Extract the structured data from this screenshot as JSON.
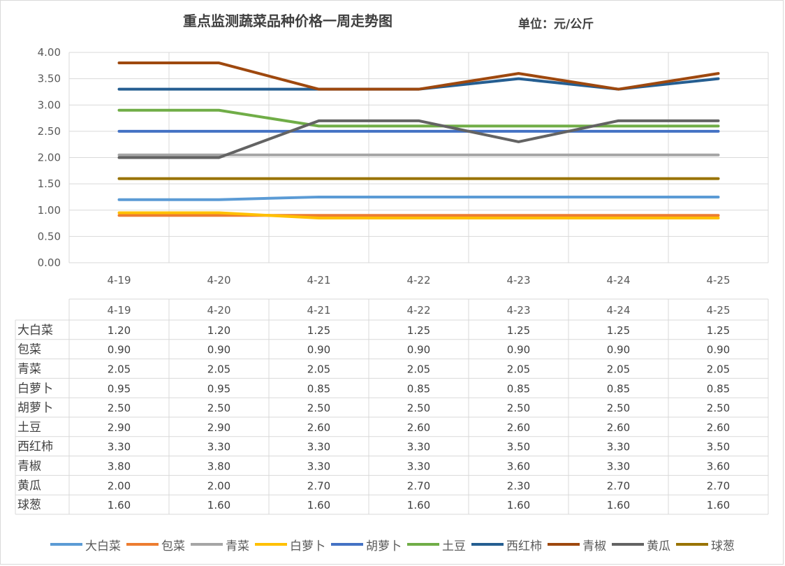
{
  "chart_data": {
    "type": "line",
    "title": "重点监测蔬菜品种价格一周走势图",
    "unit_label": "单位：元/公斤",
    "categories": [
      "4-19",
      "4-20",
      "4-21",
      "4-22",
      "4-23",
      "4-24",
      "4-25"
    ],
    "ylim": [
      0,
      4
    ],
    "yticks": [
      "0.00",
      "0.50",
      "1.00",
      "1.50",
      "2.00",
      "2.50",
      "3.00",
      "3.50",
      "4.00"
    ],
    "grid": true,
    "legend_position": "bottom",
    "series": [
      {
        "name": "大白菜",
        "color": "#5B9BD5",
        "values": [
          1.2,
          1.2,
          1.25,
          1.25,
          1.25,
          1.25,
          1.25
        ],
        "labels": [
          "1.20",
          "1.20",
          "1.25",
          "1.25",
          "1.25",
          "1.25",
          "1.25"
        ]
      },
      {
        "name": "包菜",
        "color": "#ED7D31",
        "values": [
          0.9,
          0.9,
          0.9,
          0.9,
          0.9,
          0.9,
          0.9
        ],
        "labels": [
          "0.90",
          "0.90",
          "0.90",
          "0.90",
          "0.90",
          "0.90",
          "0.90"
        ]
      },
      {
        "name": "青菜",
        "color": "#A5A5A5",
        "values": [
          2.05,
          2.05,
          2.05,
          2.05,
          2.05,
          2.05,
          2.05
        ],
        "labels": [
          "2.05",
          "2.05",
          "2.05",
          "2.05",
          "2.05",
          "2.05",
          "2.05"
        ]
      },
      {
        "name": "白萝卜",
        "color": "#FFC000",
        "values": [
          0.95,
          0.95,
          0.85,
          0.85,
          0.85,
          0.85,
          0.85
        ],
        "labels": [
          "0.95",
          "0.95",
          "0.85",
          "0.85",
          "0.85",
          "0.85",
          "0.85"
        ]
      },
      {
        "name": "胡萝卜",
        "color": "#4472C4",
        "values": [
          2.5,
          2.5,
          2.5,
          2.5,
          2.5,
          2.5,
          2.5
        ],
        "labels": [
          "2.50",
          "2.50",
          "2.50",
          "2.50",
          "2.50",
          "2.50",
          "2.50"
        ]
      },
      {
        "name": "土豆",
        "color": "#70AD47",
        "values": [
          2.9,
          2.9,
          2.6,
          2.6,
          2.6,
          2.6,
          2.6
        ],
        "labels": [
          "2.90",
          "2.90",
          "2.60",
          "2.60",
          "2.60",
          "2.60",
          "2.60"
        ]
      },
      {
        "name": "西红柿",
        "color": "#255E91",
        "values": [
          3.3,
          3.3,
          3.3,
          3.3,
          3.5,
          3.3,
          3.5
        ],
        "labels": [
          "3.30",
          "3.30",
          "3.30",
          "3.30",
          "3.50",
          "3.30",
          "3.50"
        ]
      },
      {
        "name": "青椒",
        "color": "#9E480E",
        "values": [
          3.8,
          3.8,
          3.3,
          3.3,
          3.6,
          3.3,
          3.6
        ],
        "labels": [
          "3.80",
          "3.80",
          "3.30",
          "3.30",
          "3.60",
          "3.30",
          "3.60"
        ]
      },
      {
        "name": "黄瓜",
        "color": "#636363",
        "values": [
          2.0,
          2.0,
          2.7,
          2.7,
          2.3,
          2.7,
          2.7
        ],
        "labels": [
          "2.00",
          "2.00",
          "2.70",
          "2.70",
          "2.30",
          "2.70",
          "2.70"
        ]
      },
      {
        "name": "球葱",
        "color": "#997300",
        "values": [
          1.6,
          1.6,
          1.6,
          1.6,
          1.6,
          1.6,
          1.6
        ],
        "labels": [
          "1.60",
          "1.60",
          "1.60",
          "1.60",
          "1.60",
          "1.60",
          "1.60"
        ]
      }
    ]
  }
}
